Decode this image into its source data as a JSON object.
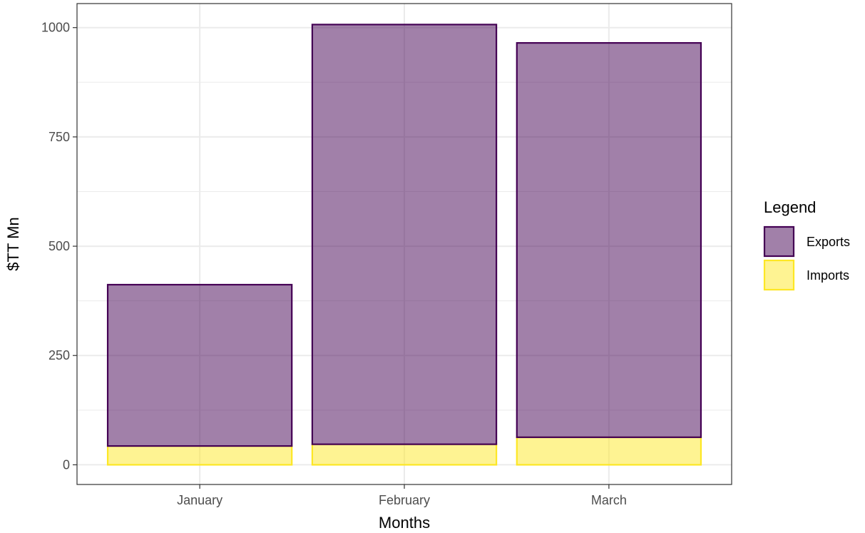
{
  "chart_data": {
    "type": "bar",
    "stacked": true,
    "categories": [
      "January",
      "February",
      "March"
    ],
    "series": [
      {
        "name": "Imports",
        "values": [
          43,
          47,
          63
        ],
        "fill": "#fde725",
        "stroke": "#fde725"
      },
      {
        "name": "Exports",
        "values": [
          369,
          960,
          902
        ],
        "fill": "#440154",
        "stroke": "#440154"
      }
    ],
    "xlabel": "Months",
    "ylabel": "$TT Mn",
    "ylim": [
      -45,
      1055
    ],
    "yticks": [
      0,
      250,
      500,
      750,
      1000
    ],
    "grid": true,
    "legend": {
      "title": "Legend",
      "position": "right",
      "items": [
        "Exports",
        "Imports"
      ]
    }
  }
}
